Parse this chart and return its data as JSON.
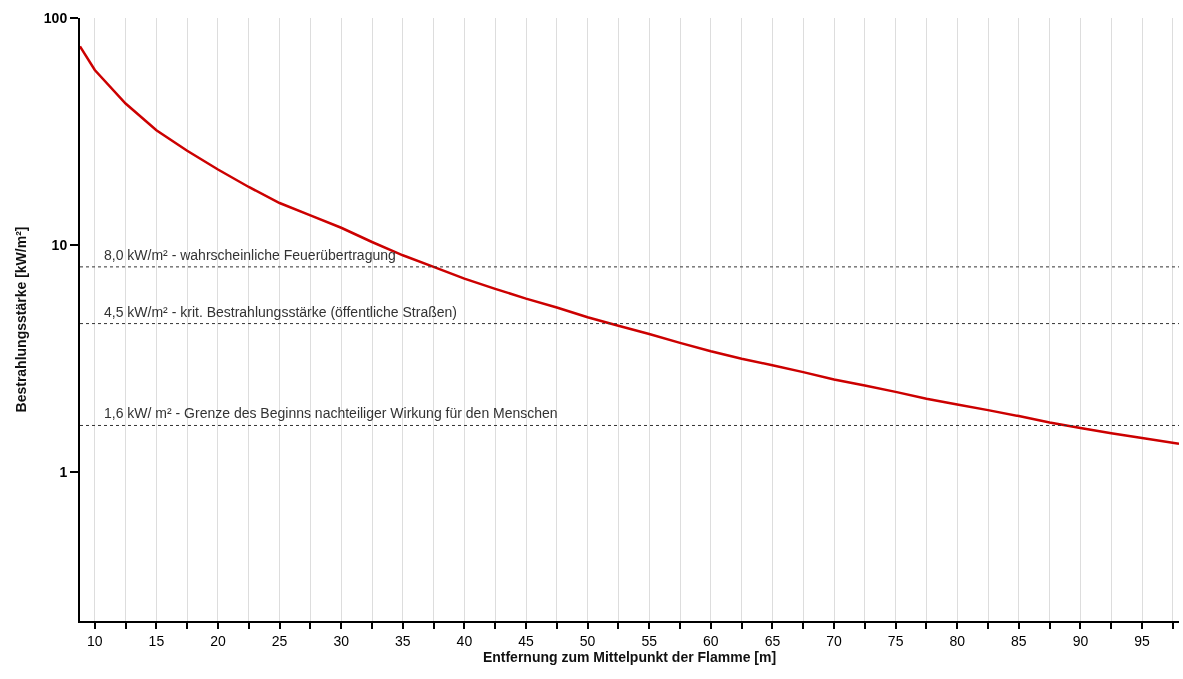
{
  "chart_data": {
    "type": "line",
    "xlabel": "Entfernung zum Mittelpunkt der Flamme [m]",
    "ylabel": "Bestrahlungsstärke [kW/m²]",
    "x": [
      8.8,
      10,
      12.5,
      15,
      17.5,
      20,
      22.5,
      25,
      27.5,
      30,
      32.5,
      35,
      37.5,
      40,
      42.5,
      45,
      47.5,
      50,
      52.5,
      55,
      57.5,
      60,
      62.5,
      65,
      67.5,
      70,
      72.5,
      75,
      77.5,
      80,
      82.5,
      85,
      87.5,
      90,
      92.5,
      95,
      98
    ],
    "series": [
      {
        "color": "#cc0000",
        "values": [
          75,
          59,
          42,
          32,
          26,
          21.5,
          18,
          15.3,
          13.5,
          11.9,
          10.3,
          9.0,
          8.0,
          7.1,
          6.4,
          5.8,
          5.3,
          4.8,
          4.4,
          4.05,
          3.7,
          3.4,
          3.15,
          2.95,
          2.75,
          2.55,
          2.4,
          2.25,
          2.1,
          1.98,
          1.87,
          1.76,
          1.65,
          1.56,
          1.48,
          1.41,
          1.33
        ]
      }
    ],
    "xlim": [
      8.8,
      98
    ],
    "xticks": [
      10,
      {
        "value": 12.5,
        "label": null
      },
      15,
      {
        "value": 17.5,
        "label": null
      },
      20,
      {
        "value": 22.5,
        "label": null
      },
      25,
      {
        "value": 27.5,
        "label": null
      },
      30,
      {
        "value": 32.5,
        "label": null
      },
      35,
      {
        "value": 37.5,
        "label": null
      },
      40,
      {
        "value": 42.5,
        "label": null
      },
      45,
      {
        "value": 47.5,
        "label": null
      },
      50,
      {
        "value": 52.5,
        "label": null
      },
      55,
      {
        "value": 57.5,
        "label": null
      },
      60,
      {
        "value": 62.5,
        "label": null
      },
      65,
      {
        "value": 67.5,
        "label": null
      },
      70,
      {
        "value": 72.5,
        "label": null
      },
      75,
      {
        "value": 77.5,
        "label": null
      },
      80,
      {
        "value": 82.5,
        "label": null
      },
      85,
      {
        "value": 87.5,
        "label": null
      },
      90,
      {
        "value": 92.5,
        "label": null
      },
      95,
      {
        "value": 97.5,
        "label": null
      }
    ],
    "ylim": [
      0.22,
      100
    ],
    "yticks": [
      1,
      10,
      100
    ],
    "log": "y",
    "grid": "x",
    "marker": "none",
    "line_style": "solid",
    "ref_lines": [
      {
        "axis": "y",
        "value": 8.0,
        "label": "8,0 kW/m² - wahrscheinliche Feuerübertragung",
        "color": "#333333",
        "line_style": "dotted"
      },
      {
        "axis": "y",
        "value": 4.5,
        "label": "4,5 kW/m² - krit. Bestrahlungsstärke (öffentliche Straßen)",
        "color": "#333333",
        "line_style": "dotted"
      },
      {
        "axis": "y",
        "value": 1.6,
        "label": "1,6 kW/ m² - Grenze des Beginns nachteiliger Wirkung für den Menschen",
        "color": "#333333",
        "line_style": "dotted"
      }
    ]
  }
}
